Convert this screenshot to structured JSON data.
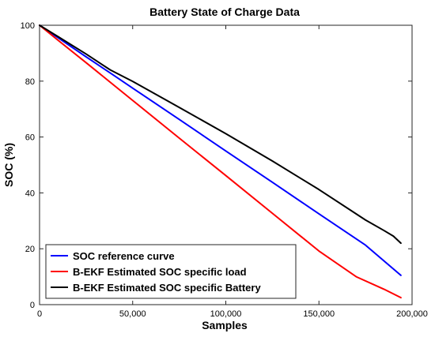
{
  "chart_data": {
    "type": "line",
    "title": "Battery State of Charge Data",
    "xlabel": "Samples",
    "ylabel": "SOC (%)",
    "xlim": [
      0,
      200000
    ],
    "ylim": [
      0,
      100
    ],
    "xticks": [
      0,
      50000,
      100000,
      150000,
      200000
    ],
    "xtick_labels": [
      "0",
      "50,000",
      "100,000",
      "150,000",
      "200,000"
    ],
    "yticks": [
      0,
      20,
      40,
      60,
      80,
      100
    ],
    "ytick_labels": [
      "0",
      "20",
      "40",
      "60",
      "80",
      "100"
    ],
    "grid": false,
    "legend_position": "bottom-left",
    "series": [
      {
        "name": "SOC reference curve",
        "color": "#0000ff",
        "x": [
          0,
          10000,
          25000,
          40000,
          50000,
          75000,
          100000,
          125000,
          150000,
          175000,
          194000
        ],
        "y": [
          100,
          95.5,
          88.7,
          82,
          77.5,
          66.3,
          55,
          43.8,
          32.5,
          21.3,
          10.5
        ]
      },
      {
        "name": "B-EKF Estimated SOC specific load",
        "color": "#ff0000",
        "x": [
          0,
          10000,
          25000,
          40000,
          50000,
          75000,
          100000,
          125000,
          150000,
          170000,
          185000,
          194000
        ],
        "y": [
          100,
          94.6,
          86.6,
          78.5,
          73.1,
          59.6,
          46.2,
          32.7,
          19.2,
          10,
          5.5,
          2.5
        ]
      },
      {
        "name": "B-EKF Estimated SOC specific Battery",
        "color": "#000000",
        "x": [
          0,
          10000,
          25000,
          38000,
          50000,
          75000,
          100000,
          125000,
          150000,
          175000,
          185000,
          190000,
          194000
        ],
        "y": [
          100,
          95.9,
          89.7,
          84,
          79.9,
          70.6,
          61.2,
          51.4,
          41.2,
          30.3,
          26.5,
          24.5,
          22
        ]
      }
    ]
  }
}
